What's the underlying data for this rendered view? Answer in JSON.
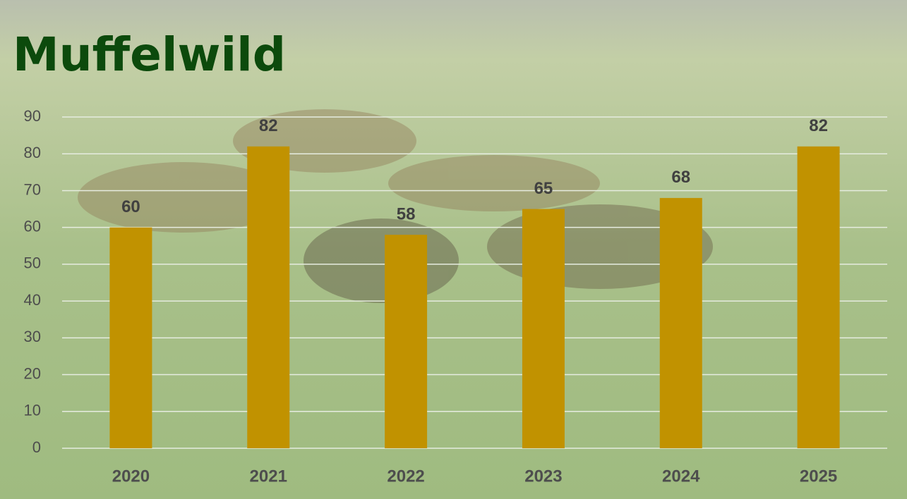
{
  "chart_data": {
    "type": "bar",
    "title": "Muffelwild",
    "categories": [
      "2020",
      "2021",
      "2022",
      "2023",
      "2024",
      "2025"
    ],
    "values": [
      60,
      82,
      58,
      65,
      68,
      82
    ],
    "color": "#c19200",
    "ylim": [
      0,
      90
    ],
    "yticks": [
      0,
      10,
      20,
      30,
      40,
      50,
      60,
      70,
      80,
      90
    ],
    "grid": true
  }
}
